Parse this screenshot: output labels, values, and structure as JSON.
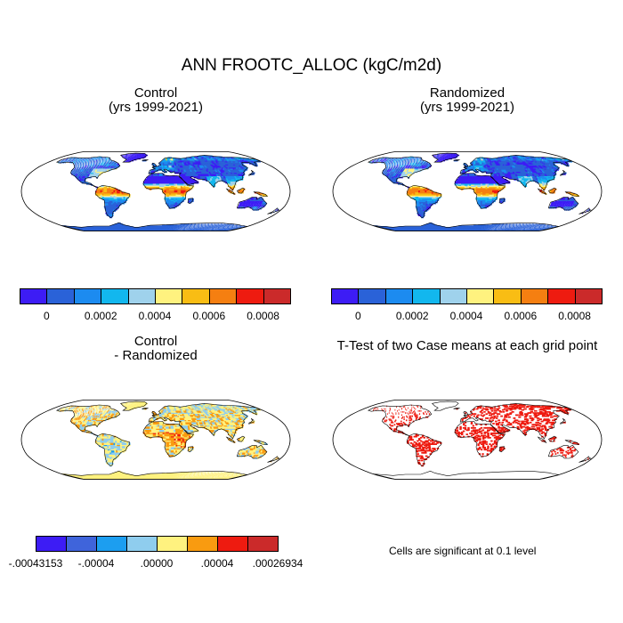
{
  "figure": {
    "title": "ANN FROOTC_ALLOC (kgC/m2d)"
  },
  "panels": [
    {
      "id": "control",
      "title_line1": "Control",
      "title_line2": "(yrs 1999-2021)",
      "style": "field"
    },
    {
      "id": "randomized",
      "title_line1": "Randomized",
      "title_line2": "(yrs 1999-2021)",
      "style": "field"
    },
    {
      "id": "difference",
      "title_line1": "Control",
      "title_line2": "- Randomized",
      "style": "diff"
    },
    {
      "id": "ttest",
      "title_line1": "T-Test of two Case means at each grid point",
      "title_line2": "",
      "style": "sig"
    }
  ],
  "colorbars": {
    "field": {
      "colors": [
        "#3d1cf5",
        "#2a62d8",
        "#1c8bf0",
        "#12b7ee",
        "#9fd2ec",
        "#fff27f",
        "#f9bd14",
        "#f57f11",
        "#ee1b10",
        "#cb2a2a"
      ],
      "labels": [
        "0",
        "0.0002",
        "0.0004",
        "0.0006",
        "0.0008"
      ]
    },
    "diff": {
      "colors": [
        "#3d1cf5",
        "#3f64db",
        "#1c9ef0",
        "#8fcdee",
        "#fff27f",
        "#f99b10",
        "#ee1b10",
        "#cb2a2a"
      ],
      "labels": [
        ".00043153",
        ".00004",
        ".00000",
        ".00004",
        ".00026934"
      ],
      "label_signs": [
        "-",
        "-",
        "",
        "",
        ""
      ]
    }
  },
  "significance_note": "Cells are significant at 0.1 level",
  "map_colors": {
    "ocean": "#ffffff",
    "coast": "#000000",
    "antarctica_field": "#2a62d8",
    "antarctica_diff": "#fff27f",
    "significant": "#ee1b10"
  }
}
